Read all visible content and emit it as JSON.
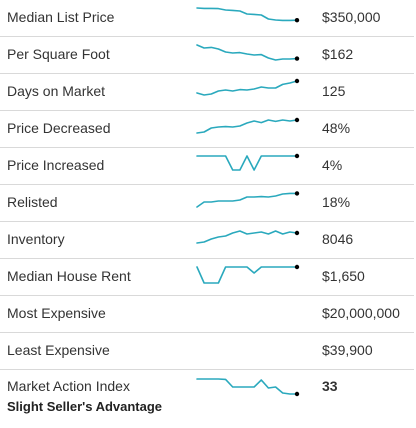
{
  "colors": {
    "sparkline": "#2aa9bd",
    "endpoint": "#000000",
    "divider": "#d9d9d9"
  },
  "rows": [
    {
      "label": "Median List Price",
      "value": "$350,000",
      "spark": [
        0.9,
        0.88,
        0.88,
        0.87,
        0.8,
        0.78,
        0.75,
        0.6,
        0.58,
        0.55,
        0.35,
        0.3,
        0.28,
        0.28,
        0.29
      ]
    },
    {
      "label": "Per Square Foot",
      "value": "$162",
      "spark": [
        0.9,
        0.75,
        0.78,
        0.7,
        0.55,
        0.5,
        0.52,
        0.45,
        0.4,
        0.42,
        0.25,
        0.15,
        0.2,
        0.2,
        0.22
      ]
    },
    {
      "label": "Days on Market",
      "value": "125",
      "spark": [
        0.35,
        0.25,
        0.3,
        0.45,
        0.5,
        0.45,
        0.52,
        0.5,
        0.55,
        0.65,
        0.6,
        0.6,
        0.78,
        0.85,
        0.95
      ]
    },
    {
      "label": "Price Decreased",
      "value": "48%",
      "spark": [
        0.2,
        0.25,
        0.45,
        0.5,
        0.52,
        0.5,
        0.55,
        0.7,
        0.8,
        0.72,
        0.85,
        0.78,
        0.85,
        0.8,
        0.85
      ]
    },
    {
      "label": "Price Increased",
      "value": "4%",
      "spark": [
        0.9,
        0.9,
        0.9,
        0.9,
        0.9,
        0.2,
        0.2,
        0.9,
        0.2,
        0.9,
        0.9,
        0.9,
        0.9,
        0.9,
        0.9
      ]
    },
    {
      "label": "Relisted",
      "value": "18%",
      "spark": [
        0.2,
        0.45,
        0.45,
        0.5,
        0.5,
        0.5,
        0.55,
        0.7,
        0.7,
        0.72,
        0.7,
        0.75,
        0.85,
        0.88,
        0.88
      ]
    },
    {
      "label": "Inventory",
      "value": "8046",
      "spark": [
        0.25,
        0.3,
        0.45,
        0.55,
        0.6,
        0.75,
        0.85,
        0.7,
        0.75,
        0.8,
        0.7,
        0.85,
        0.7,
        0.8,
        0.75
      ]
    },
    {
      "label": "Median House Rent",
      "value": "$1,650",
      "spark": [
        0.9,
        0.1,
        0.1,
        0.1,
        0.9,
        0.9,
        0.9,
        0.9,
        0.6,
        0.9,
        0.9,
        0.9,
        0.9,
        0.9,
        0.9
      ]
    },
    {
      "label": "Most Expensive",
      "value": "$20,000,000",
      "spark": null
    },
    {
      "label": "Least Expensive",
      "value": "$39,900",
      "spark": null
    }
  ],
  "market_action": {
    "label": "Market Action Index",
    "value": "33",
    "sublabel": "Slight Seller's Advantage",
    "spark": [
      0.9,
      0.9,
      0.9,
      0.9,
      0.88,
      0.5,
      0.5,
      0.5,
      0.5,
      0.85,
      0.45,
      0.5,
      0.2,
      0.15,
      0.15
    ]
  }
}
